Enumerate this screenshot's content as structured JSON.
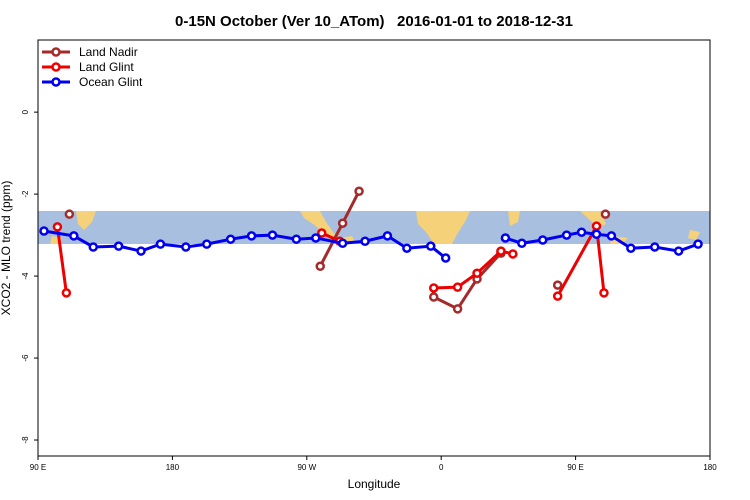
{
  "chart_data": {
    "type": "line",
    "title": "0-15N October (Ver 10_ATom)   2016-01-01 to 2018-12-31",
    "x_label": "Longitude",
    "y_label": "XCO2 - MLO trend (ppm)",
    "xlim": [
      90,
      540
    ],
    "ylim": [
      -8.39,
      1.76
    ],
    "xticks": [
      {
        "value": 90,
        "label": "90 E"
      },
      180,
      {
        "value": 270,
        "label": "90 W"
      },
      {
        "value": 360,
        "label": "0"
      },
      {
        "value": 450,
        "label": "90 E"
      },
      {
        "value": 540,
        "label": "180"
      }
    ],
    "yticks": [
      0,
      -2,
      -4,
      -6,
      -8
    ],
    "legend": "top-left",
    "series": [
      {
        "name": "Land Nadir",
        "color": "#a52a2a",
        "x": [
          111,
          null,
          279,
          294,
          305,
          null,
          355,
          371,
          384,
          400,
          null,
          438,
          null,
          470
        ],
        "values": [
          -2.49,
          null,
          -3.76,
          -2.71,
          -1.93,
          null,
          -4.51,
          -4.8,
          -4.07,
          -3.44,
          null,
          -4.22,
          null,
          -2.49
        ]
      },
      {
        "name": "Land Glint",
        "color": "#ee0000",
        "x": [
          103,
          109,
          null,
          280,
          292,
          null,
          355,
          371,
          384,
          400,
          408,
          null,
          438,
          464,
          469
        ],
        "values": [
          -2.8,
          -4.41,
          null,
          -2.95,
          -3.15,
          null,
          -4.29,
          -4.27,
          -3.93,
          -3.39,
          -3.46,
          null,
          -4.49,
          -2.78,
          -4.41
        ]
      },
      {
        "name": "Ocean Glint",
        "color": "#0000ee",
        "x": [
          94,
          114,
          127,
          144,
          159,
          172,
          189,
          203,
          219,
          233,
          247,
          263,
          276,
          294,
          309,
          324,
          337,
          353,
          363,
          null,
          403,
          414,
          428,
          444,
          454,
          464,
          474,
          487,
          503,
          519,
          532
        ],
        "values": [
          -2.9,
          -3.02,
          -3.29,
          -3.27,
          -3.39,
          -3.22,
          -3.29,
          -3.22,
          -3.1,
          -3.02,
          -3.0,
          -3.1,
          -3.07,
          -3.2,
          -3.15,
          -3.02,
          -3.32,
          -3.27,
          -3.56,
          null,
          -3.07,
          -3.2,
          -3.12,
          -3.0,
          -2.93,
          -2.98,
          -3.02,
          -3.32,
          -3.29,
          -3.39,
          -3.22
        ]
      }
    ]
  }
}
